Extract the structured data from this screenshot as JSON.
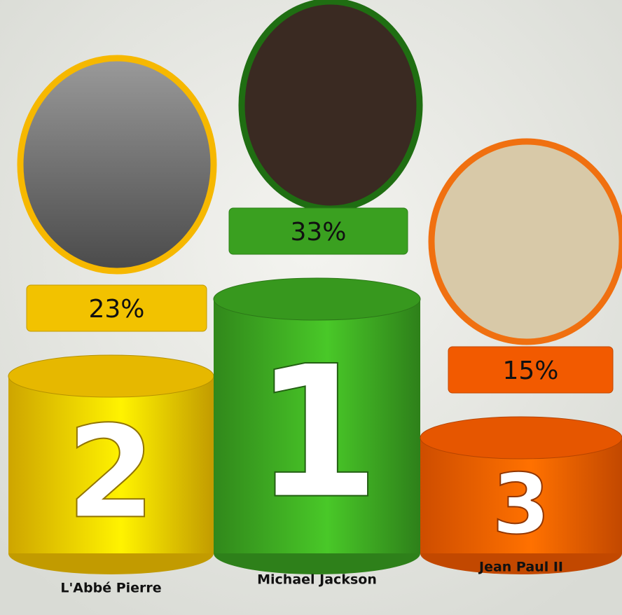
{
  "chart_data": {
    "type": "podium",
    "categories": [
      "L'Abbé Pierre",
      "Michael Jackson",
      "Jean Paul II"
    ],
    "values": [
      23,
      33,
      15
    ],
    "value_labels": [
      "23%",
      "33%",
      "15%"
    ],
    "ranks": [
      "2",
      "1",
      "3"
    ],
    "colors": [
      "#f2c200",
      "#3aa020",
      "#f25a00"
    ]
  }
}
